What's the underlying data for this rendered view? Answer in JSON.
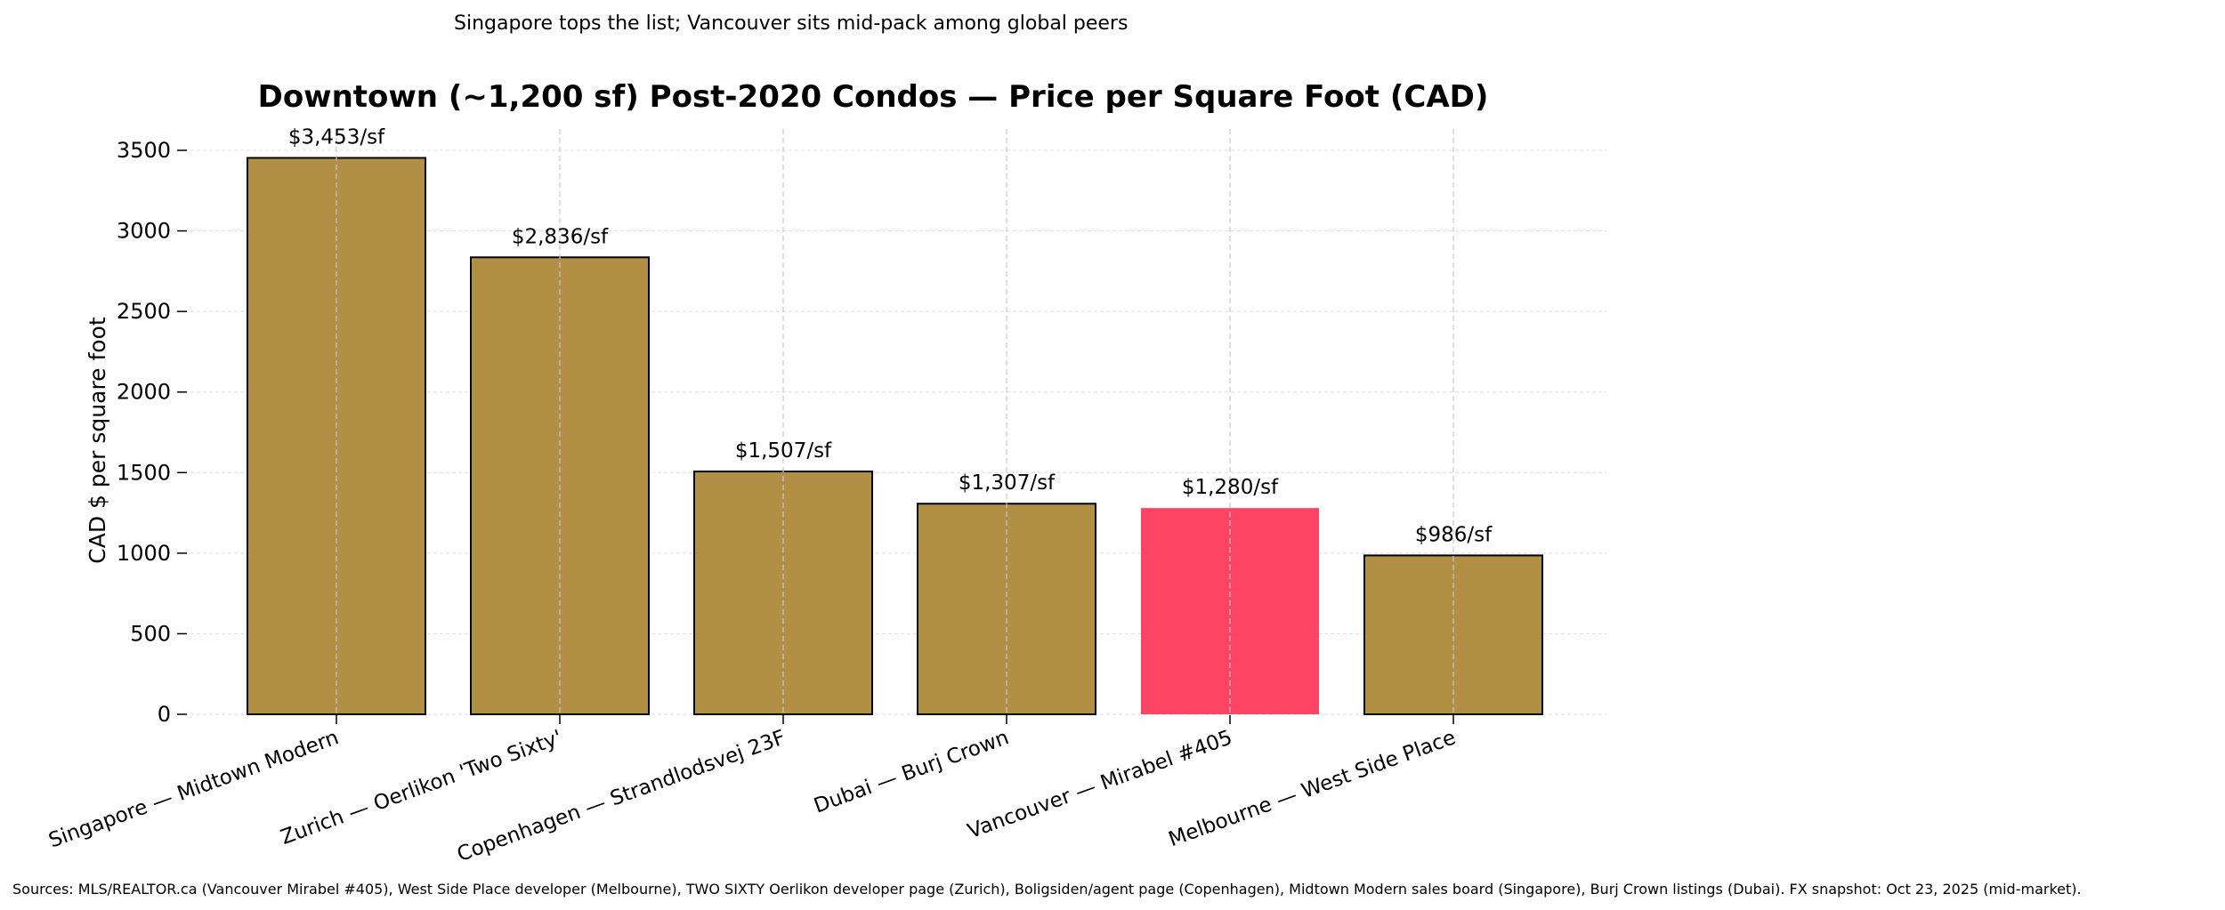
{
  "chart_data": {
    "type": "bar",
    "subtitle": "Singapore tops the list; Vancouver sits mid-pack among global peers",
    "title": "Downtown (~1,200 sf) Post-2020 Condos — Price per Square Foot (CAD)",
    "ylabel": "CAD $ per square foot",
    "xlabel": "",
    "ylim": [
      0,
      3650
    ],
    "yticks": [
      0,
      500,
      1000,
      1500,
      2000,
      2500,
      3000,
      3500
    ],
    "grid": true,
    "categories": [
      "Singapore — Midtown Modern",
      "Zurich — Oerlikon 'Two Sixty'",
      "Copenhagen — Strandlodsvej 23F",
      "Dubai — Burj Crown",
      "Vancouver — Mirabel #405",
      "Melbourne — West Side Place"
    ],
    "values": [
      3453,
      2836,
      1507,
      1307,
      1280,
      986
    ],
    "data_labels": [
      "$3,453/sf",
      "$2,836/sf",
      "$1,507/sf",
      "$1,307/sf",
      "$1,280/sf",
      "$986/sf"
    ],
    "highlight_index": 4,
    "colors": {
      "bar": "#b18f44",
      "highlight": "#ff4466",
      "edge": "#000000"
    },
    "source_note": "Sources: MLS/REALTOR.ca (Vancouver Mirabel #405), West Side Place developer (Melbourne), TWO SIXTY Oerlikon developer page (Zurich), Boligsiden/agent page (Copenhagen), Midtown Modern sales board (Singapore), Burj Crown listings (Dubai).  FX snapshot: Oct 23, 2025 (mid-market)."
  }
}
